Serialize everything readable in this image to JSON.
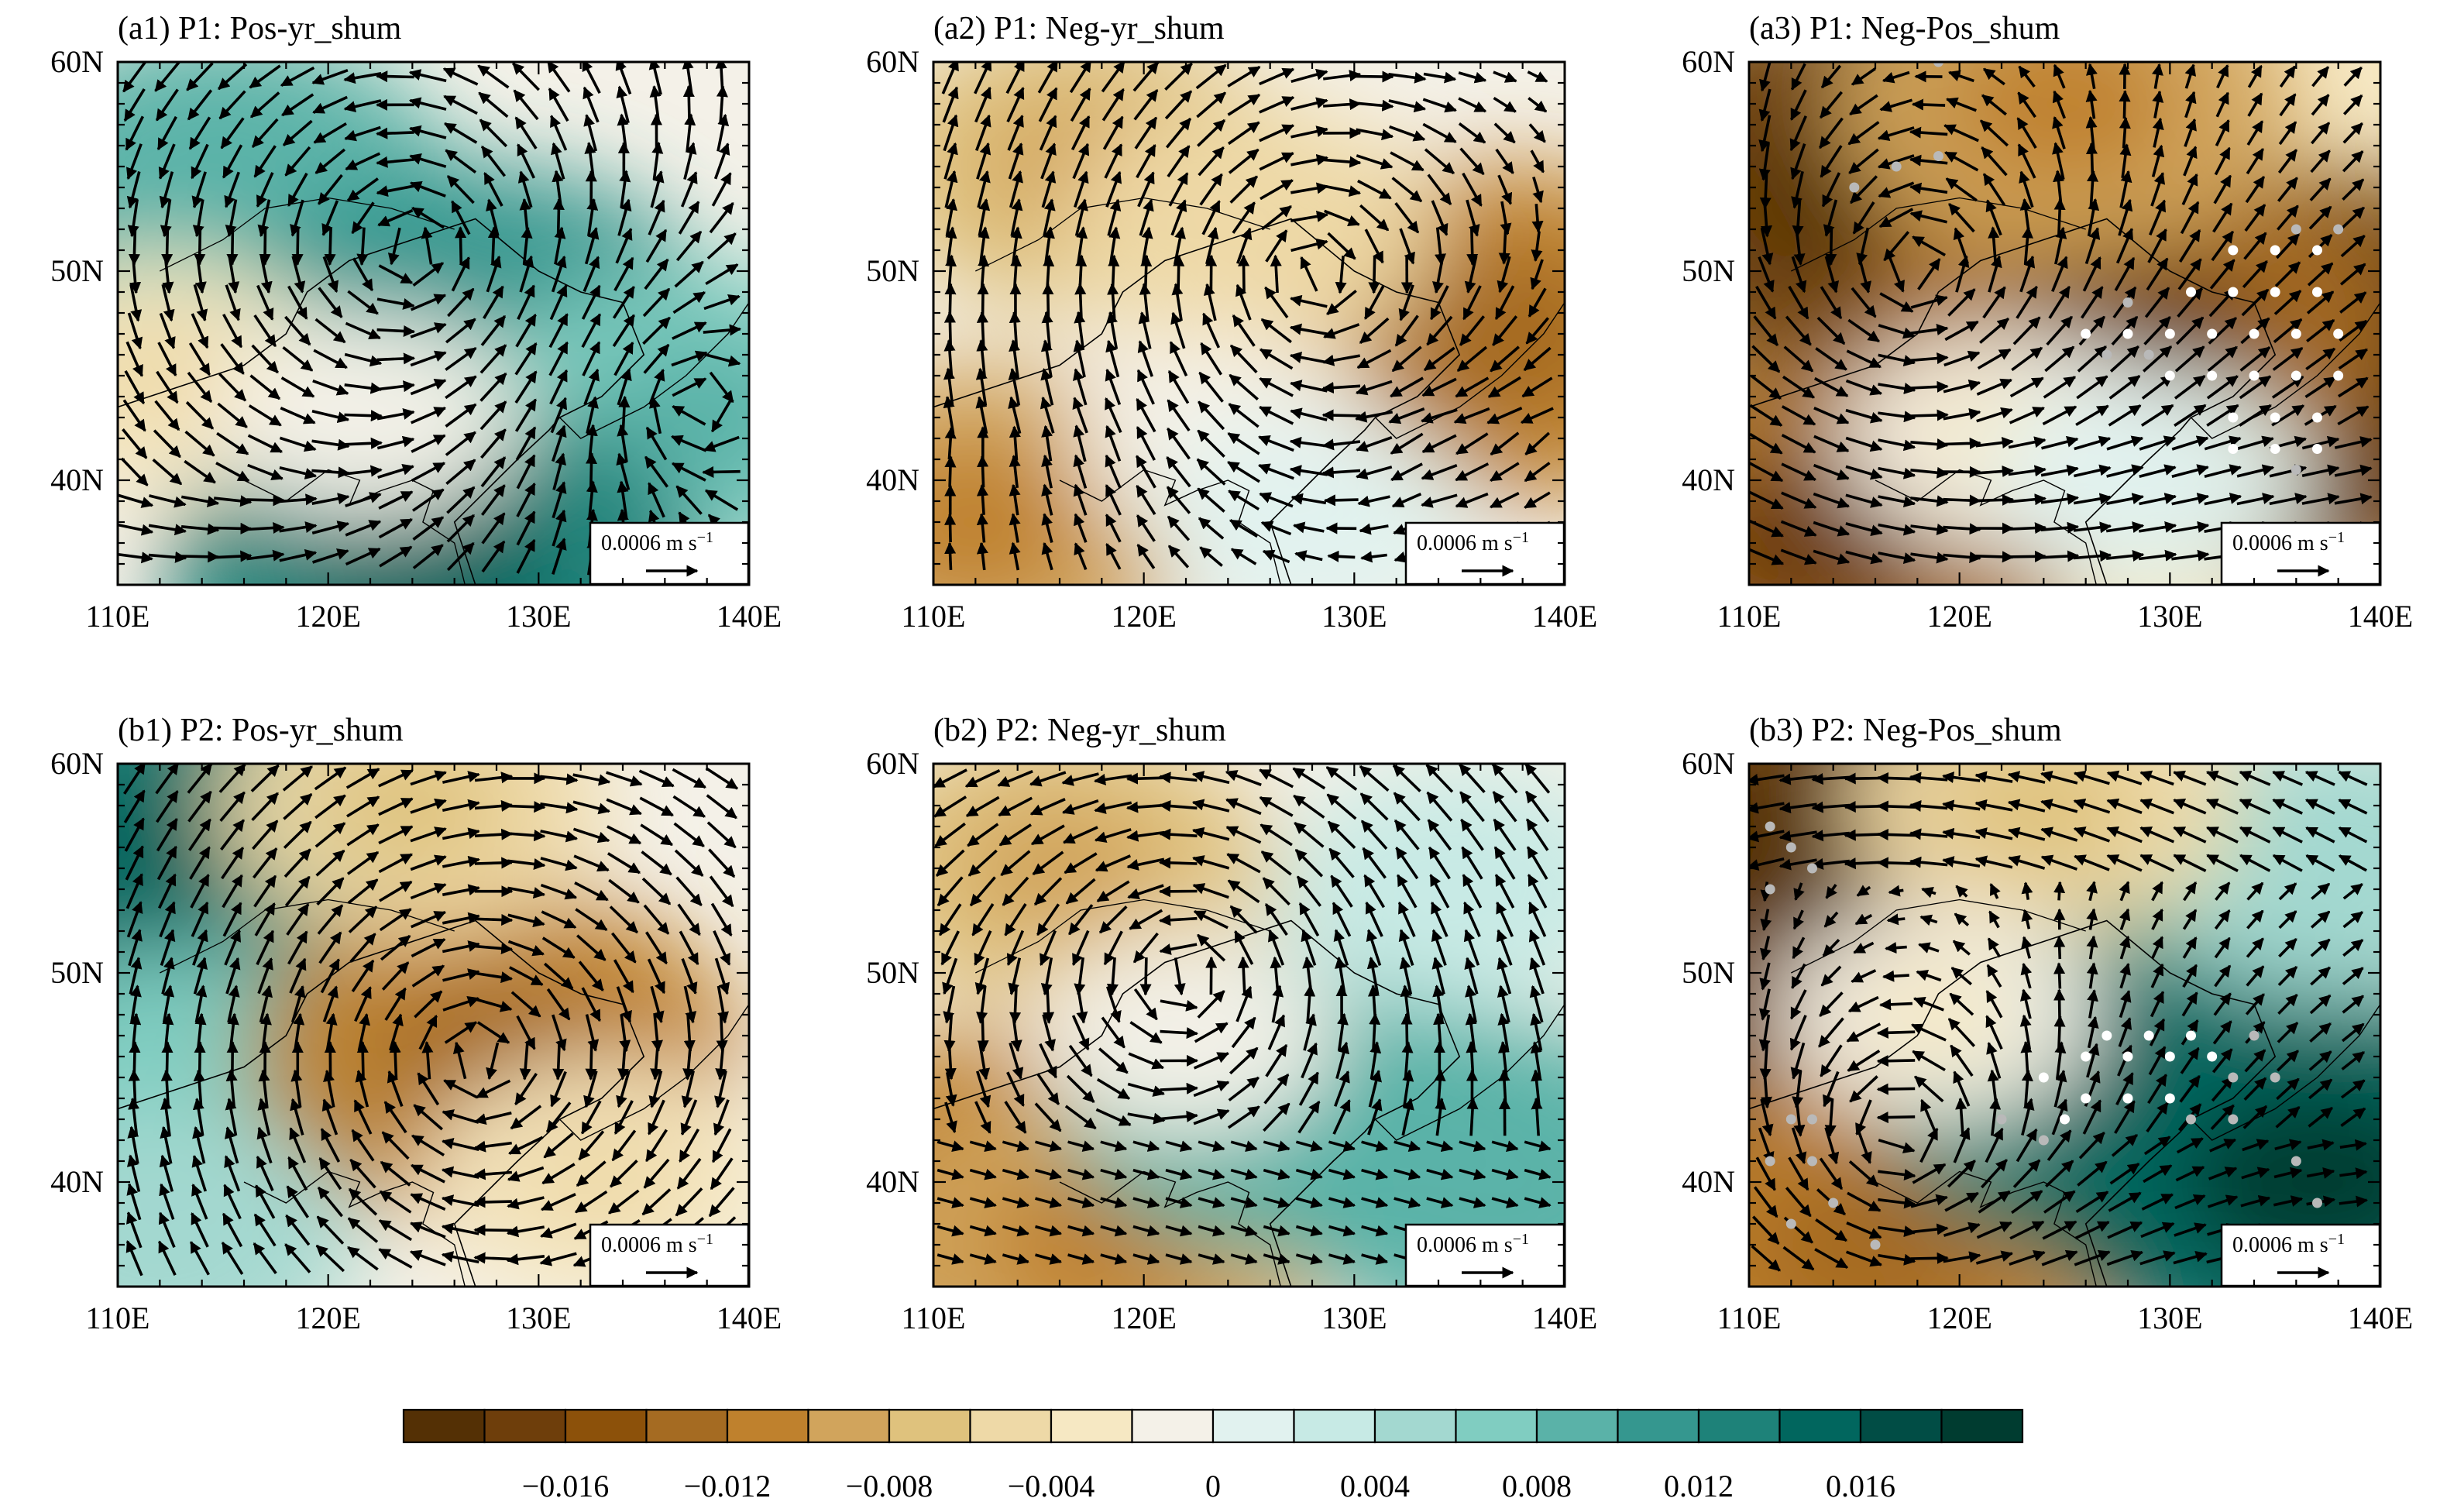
{
  "figure": {
    "panels": [
      {
        "id": "a1",
        "title": "(a1) P1: Pos-yr_shum"
      },
      {
        "id": "a2",
        "title": "(a2) P1: Neg-yr_shum"
      },
      {
        "id": "a3",
        "title": "(a3) P1: Neg-Pos_shum"
      },
      {
        "id": "b1",
        "title": "(b1) P2: Pos-yr_shum"
      },
      {
        "id": "b2",
        "title": "(b2) P2: Neg-yr_shum"
      },
      {
        "id": "b3",
        "title": "(b3) P2: Neg-Pos_shum"
      }
    ],
    "x_ticks": [
      "110E",
      "120E",
      "130E",
      "140E"
    ],
    "y_ticks": [
      "60N",
      "50N",
      "40N"
    ],
    "reference_vector": {
      "magnitude": "0.0006",
      "unit": "m s",
      "exponent": "−1"
    }
  },
  "colorbar": {
    "tick_labels": [
      "−0.016",
      "−0.012",
      "−0.008",
      "−0.004",
      "0",
      "0.004",
      "0.008",
      "0.012",
      "0.016"
    ],
    "levels": [
      -0.018,
      -0.016,
      -0.014,
      -0.012,
      -0.01,
      -0.008,
      -0.006,
      -0.004,
      -0.002,
      0.002,
      0.004,
      0.006,
      0.008,
      0.01,
      0.012,
      0.014,
      0.016,
      0.018
    ],
    "colors": [
      "#543005",
      "#6e3e0b",
      "#8c510a",
      "#a56b22",
      "#bf812d",
      "#d1a45c",
      "#dfc27d",
      "#eed9a7",
      "#f6e8c3",
      "#f4f1e8",
      "#e1f2ef",
      "#c7eae5",
      "#a3d8d0",
      "#80cdc1",
      "#5ab2a8",
      "#35978f",
      "#1e8279",
      "#01665e",
      "#014d45",
      "#003c30"
    ]
  },
  "chart_data": [
    {
      "panel": "a1",
      "type": "map",
      "lon_range": [
        110,
        140
      ],
      "lat_range": [
        35,
        60
      ],
      "variable": "shum",
      "features": [
        {
          "lon": 115,
          "lat": 54,
          "value": 0.01
        },
        {
          "lon": 127,
          "lat": 47,
          "value": 0.012
        },
        {
          "lon": 138,
          "lat": 43,
          "value": 0.009
        },
        {
          "lon": 125,
          "lat": 35.5,
          "value": 0.014
        },
        {
          "lon": 112,
          "lat": 45,
          "value": -0.004
        },
        {
          "lon": 122,
          "lat": 43,
          "value": -0.001
        }
      ],
      "stipple_white": [],
      "stipple_gray": []
    },
    {
      "panel": "a2",
      "type": "map",
      "lon_range": [
        110,
        140
      ],
      "lat_range": [
        35,
        60
      ],
      "variable": "shum",
      "features": [
        {
          "lon": 117,
          "lat": 55,
          "value": -0.008
        },
        {
          "lon": 137,
          "lat": 47,
          "value": -0.012
        },
        {
          "lon": 112,
          "lat": 38,
          "value": -0.01
        },
        {
          "lon": 125,
          "lat": 52,
          "value": -0.005
        },
        {
          "lon": 124,
          "lat": 42,
          "value": -0.001
        },
        {
          "lon": 128,
          "lat": 38,
          "value": 0.002
        }
      ],
      "stipple_white": [],
      "stipple_gray": []
    },
    {
      "panel": "a3",
      "type": "map",
      "lon_range": [
        110,
        140
      ],
      "lat_range": [
        35,
        60
      ],
      "variable": "shum",
      "features": [
        {
          "lon": 116,
          "lat": 54,
          "value": -0.017
        },
        {
          "lon": 136,
          "lat": 45,
          "value": -0.018
        },
        {
          "lon": 128,
          "lat": 47,
          "value": -0.014
        },
        {
          "lon": 113,
          "lat": 37,
          "value": -0.014
        },
        {
          "lon": 125,
          "lat": 58,
          "value": -0.01
        },
        {
          "lon": 122,
          "lat": 42,
          "value": -0.002
        },
        {
          "lon": 129,
          "lat": 40,
          "value": 0.002
        }
      ],
      "stipple_white": [
        [
          126,
          47
        ],
        [
          128,
          47
        ],
        [
          130,
          47
        ],
        [
          132,
          47
        ],
        [
          134,
          47
        ],
        [
          136,
          47
        ],
        [
          138,
          47
        ],
        [
          130,
          45
        ],
        [
          132,
          45
        ],
        [
          134,
          45
        ],
        [
          136,
          45
        ],
        [
          138,
          45
        ],
        [
          133,
          43
        ],
        [
          135,
          43
        ],
        [
          137,
          43
        ],
        [
          133,
          41.5
        ],
        [
          135,
          41.5
        ],
        [
          137,
          41.5
        ],
        [
          131,
          49
        ],
        [
          133,
          49
        ],
        [
          135,
          49
        ],
        [
          137,
          49
        ],
        [
          133,
          51
        ],
        [
          135,
          51
        ],
        [
          137,
          51
        ]
      ],
      "stipple_gray": [
        [
          115,
          54
        ],
        [
          117,
          55
        ],
        [
          119,
          55.5
        ],
        [
          119,
          60
        ],
        [
          127,
          46
        ],
        [
          129,
          46
        ],
        [
          138,
          52
        ],
        [
          136,
          52
        ],
        [
          128,
          48.5
        ],
        [
          136,
          40.5
        ]
      ]
    },
    {
      "panel": "b1",
      "type": "map",
      "lon_range": [
        110,
        140
      ],
      "lat_range": [
        35,
        60
      ],
      "variable": "shum",
      "features": [
        {
          "lon": 111,
          "lat": 56,
          "value": 0.014
        },
        {
          "lon": 113,
          "lat": 44,
          "value": 0.008
        },
        {
          "lon": 128,
          "lat": 46,
          "value": -0.012
        },
        {
          "lon": 124,
          "lat": 58,
          "value": -0.006
        },
        {
          "lon": 112,
          "lat": 37,
          "value": 0.006
        },
        {
          "lon": 133,
          "lat": 40,
          "value": -0.004
        }
      ],
      "stipple_white": [],
      "stipple_gray": []
    },
    {
      "panel": "b2",
      "type": "map",
      "lon_range": [
        110,
        140
      ],
      "lat_range": [
        35,
        60
      ],
      "variable": "shum",
      "features": [
        {
          "lon": 116,
          "lat": 55,
          "value": -0.008
        },
        {
          "lon": 113,
          "lat": 39,
          "value": -0.012
        },
        {
          "lon": 118,
          "lat": 37,
          "value": -0.01
        },
        {
          "lon": 127,
          "lat": 44,
          "value": 0.01
        },
        {
          "lon": 137,
          "lat": 40,
          "value": 0.01
        },
        {
          "lon": 135,
          "lat": 54,
          "value": 0.004
        },
        {
          "lon": 122,
          "lat": 47,
          "value": 0.001
        }
      ],
      "stipple_white": [],
      "stipple_gray": []
    },
    {
      "panel": "b3",
      "type": "map",
      "lon_range": [
        110,
        140
      ],
      "lat_range": [
        35,
        60
      ],
      "variable": "shum",
      "features": [
        {
          "lon": 113,
          "lat": 56,
          "value": -0.017
        },
        {
          "lon": 112,
          "lat": 40,
          "value": -0.017
        },
        {
          "lon": 116,
          "lat": 37,
          "value": -0.012
        },
        {
          "lon": 129,
          "lat": 45,
          "value": 0.015
        },
        {
          "lon": 137,
          "lat": 40,
          "value": 0.016
        },
        {
          "lon": 138,
          "lat": 55,
          "value": 0.006
        },
        {
          "lon": 124,
          "lat": 58,
          "value": -0.006
        },
        {
          "lon": 119,
          "lat": 48,
          "value": -0.002
        }
      ],
      "stipple_white": [
        [
          126,
          46
        ],
        [
          128,
          46
        ],
        [
          130,
          46
        ],
        [
          132,
          46
        ],
        [
          126,
          44
        ],
        [
          128,
          44
        ],
        [
          130,
          44
        ],
        [
          124,
          45
        ],
        [
          127,
          47
        ],
        [
          129,
          47
        ],
        [
          131,
          47
        ],
        [
          125,
          43
        ]
      ],
      "stipple_gray": [
        [
          111,
          57
        ],
        [
          112,
          56
        ],
        [
          113,
          55
        ],
        [
          111,
          54
        ],
        [
          112,
          43
        ],
        [
          113,
          43
        ],
        [
          111,
          41
        ],
        [
          113,
          41
        ],
        [
          114,
          39
        ],
        [
          116,
          37
        ],
        [
          112,
          38
        ],
        [
          136,
          41
        ],
        [
          137,
          39
        ],
        [
          133,
          45
        ],
        [
          135,
          45
        ],
        [
          134,
          47
        ],
        [
          122,
          43
        ],
        [
          124,
          42
        ],
        [
          131,
          43
        ],
        [
          133,
          43
        ]
      ]
    }
  ]
}
